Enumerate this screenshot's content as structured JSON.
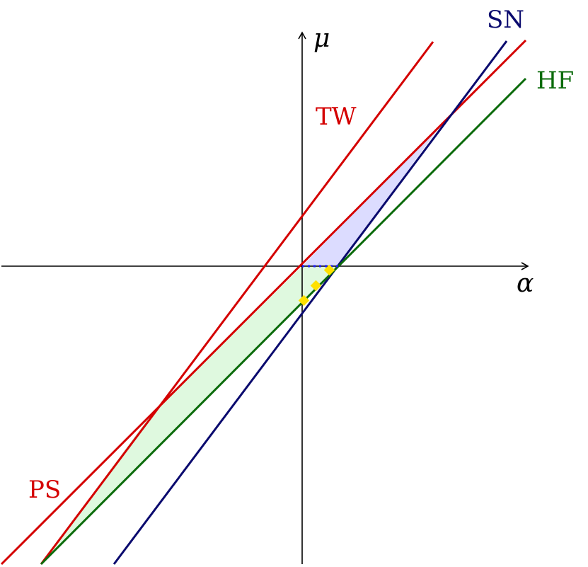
{
  "axes": {
    "x_label": "α",
    "y_label": "μ"
  },
  "curves": {
    "tw": {
      "label": "TW",
      "color": "#d40000"
    },
    "ps": {
      "label": "PS",
      "color": "#d40000"
    },
    "sn": {
      "label": "SN",
      "color": "#0a0a6e"
    },
    "hf": {
      "label": "HF",
      "color": "#0b6b0b"
    }
  },
  "regions": {
    "upper": {
      "color": "#dcdcff"
    },
    "lower": {
      "color": "#dff9df"
    }
  },
  "markers": {
    "color": "#ffe000",
    "count": 3
  },
  "dotted_segment": {
    "color": "#1a1aff"
  },
  "axis_color": "#000000"
}
